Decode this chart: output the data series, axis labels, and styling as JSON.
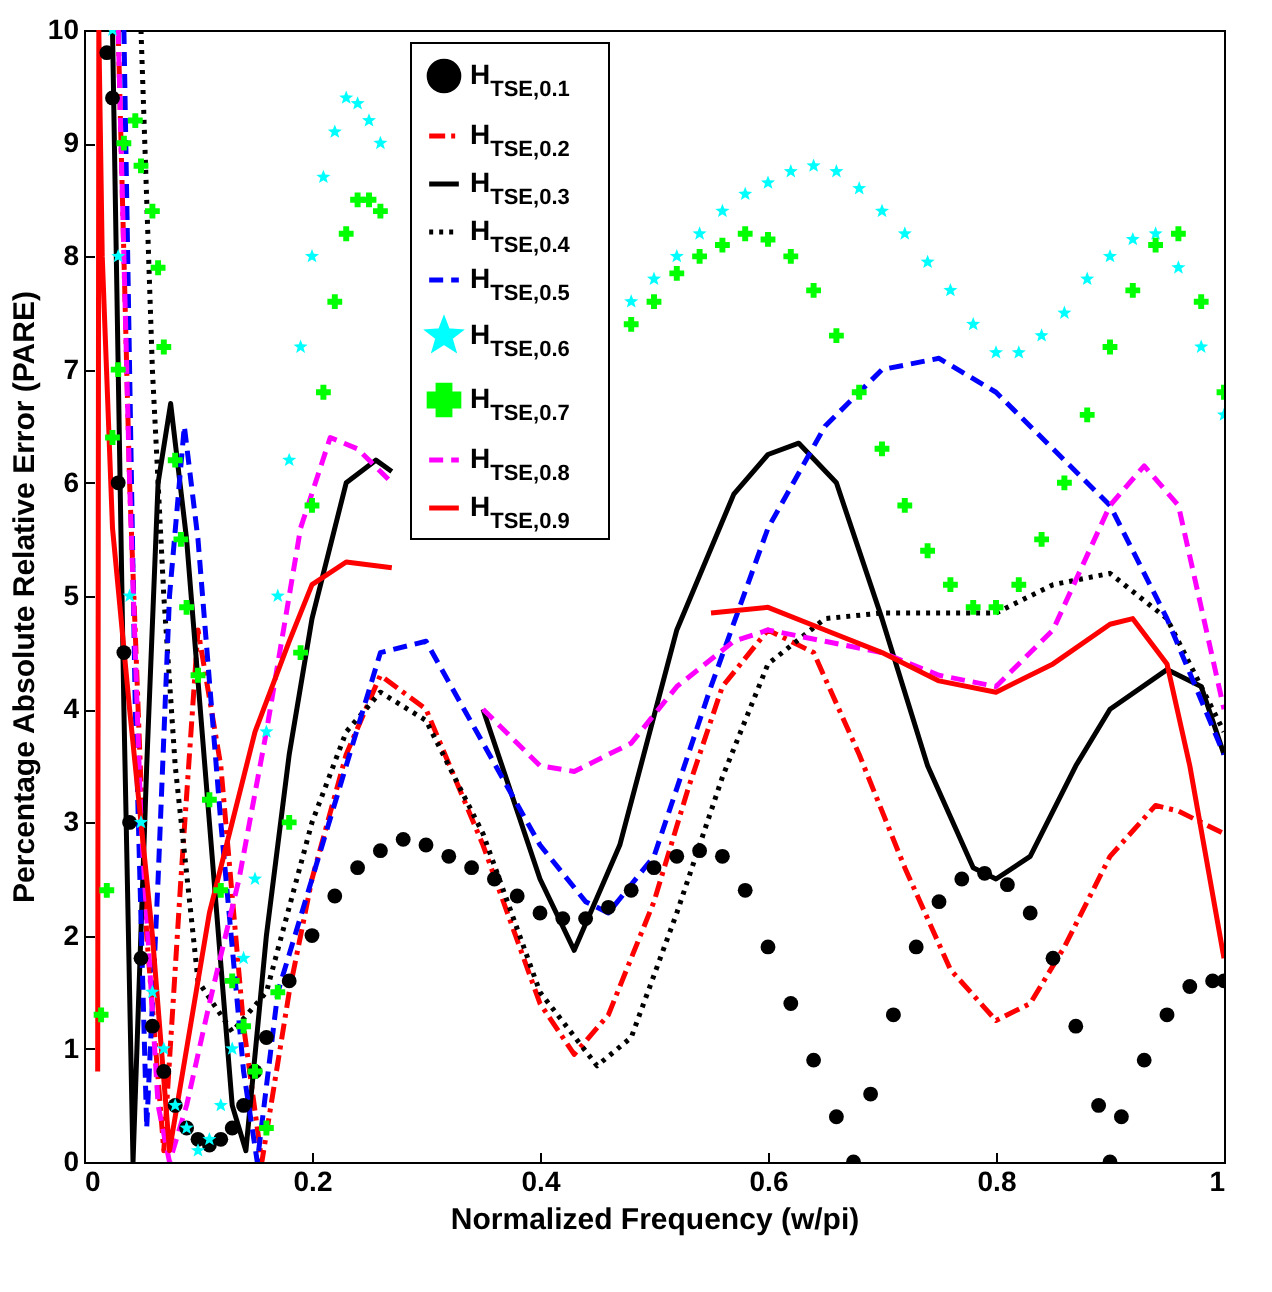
{
  "chart_data": {
    "type": "line",
    "xlabel": "Normalized Frequency (w/pi)",
    "ylabel": "Percentage Absolute Relative Error (PARE)",
    "xlim": [
      0,
      1
    ],
    "ylim": [
      0,
      10
    ],
    "xticks": [
      0,
      0.2,
      0.4,
      0.6,
      0.8,
      1
    ],
    "yticks": [
      0,
      1,
      2,
      3,
      4,
      5,
      6,
      7,
      8,
      9,
      10
    ],
    "legend": "top",
    "series": [
      {
        "name": "H$_{TSE,0.1}$",
        "type": "scatter",
        "marker": "circle",
        "color": "#000000",
        "x": [
          0.02,
          0.025,
          0.03,
          0.035,
          0.04,
          0.05,
          0.06,
          0.07,
          0.08,
          0.09,
          0.1,
          0.11,
          0.12,
          0.13,
          0.14,
          0.15,
          0.16,
          0.18,
          0.2,
          0.22,
          0.24,
          0.26,
          0.28,
          0.3,
          0.32,
          0.34,
          0.36,
          0.38,
          0.4,
          0.42,
          0.44,
          0.46,
          0.48,
          0.5,
          0.52,
          0.54,
          0.56,
          0.58,
          0.6,
          0.62,
          0.64,
          0.66,
          0.675,
          0.69,
          0.71,
          0.73,
          0.75,
          0.77,
          0.79,
          0.81,
          0.83,
          0.85,
          0.87,
          0.89,
          0.9,
          0.91,
          0.93,
          0.95,
          0.97,
          0.99,
          1.0
        ],
        "values": [
          9.8,
          9.4,
          6.0,
          4.5,
          3.0,
          1.8,
          1.2,
          0.8,
          0.5,
          0.3,
          0.2,
          0.15,
          0.2,
          0.3,
          0.5,
          0.8,
          1.1,
          1.6,
          2.0,
          2.35,
          2.6,
          2.75,
          2.85,
          2.8,
          2.7,
          2.6,
          2.5,
          2.35,
          2.2,
          2.15,
          2.15,
          2.25,
          2.4,
          2.6,
          2.7,
          2.75,
          2.7,
          2.4,
          1.9,
          1.4,
          0.9,
          0.4,
          0.0,
          0.6,
          1.3,
          1.9,
          2.3,
          2.5,
          2.55,
          2.45,
          2.2,
          1.8,
          1.2,
          0.5,
          0.0,
          0.4,
          0.9,
          1.3,
          1.55,
          1.6,
          1.6
        ]
      },
      {
        "name": "H$_{TSE,0.2}$",
        "type": "line",
        "line_style": "dashdot",
        "color": "#ff0000",
        "x": [
          0.03,
          0.04,
          0.055,
          0.07,
          0.085,
          0.1,
          0.12,
          0.14,
          0.156,
          0.18,
          0.2,
          0.23,
          0.26,
          0.3,
          0.35,
          0.4,
          0.43,
          0.46,
          0.5,
          0.53,
          0.56,
          0.6,
          0.64,
          0.68,
          0.72,
          0.76,
          0.8,
          0.83,
          0.86,
          0.9,
          0.94,
          0.96,
          1.0
        ],
        "values": [
          10,
          6.0,
          2.0,
          0.1,
          2.5,
          4.7,
          3.5,
          1.2,
          0.0,
          1.5,
          2.5,
          3.6,
          4.3,
          4.0,
          2.8,
          1.4,
          0.95,
          1.3,
          2.3,
          3.3,
          4.2,
          4.7,
          4.5,
          3.6,
          2.6,
          1.7,
          1.25,
          1.4,
          1.9,
          2.7,
          3.15,
          3.1,
          2.9
        ]
      },
      {
        "name": "H$_{TSE,0.3}$",
        "type": "line",
        "line_style": "solid",
        "color": "#000000",
        "x": [
          0.025,
          0.035,
          0.043,
          0.055,
          0.065,
          0.076,
          0.09,
          0.11,
          0.13,
          0.142,
          0.16,
          0.18,
          0.2,
          0.23,
          0.256,
          0.27,
          0.3,
          0.35,
          0.4,
          0.43,
          0.47,
          0.52,
          0.57,
          0.6,
          0.627,
          0.66,
          0.7,
          0.74,
          0.78,
          0.8,
          0.83,
          0.87,
          0.9,
          0.95,
          0.98,
          1.0
        ],
        "values": [
          10,
          4.0,
          0.0,
          3.5,
          6.0,
          6.7,
          5.5,
          3.0,
          0.5,
          0.1,
          2.0,
          3.6,
          4.8,
          6.0,
          6.2,
          6.1,
          null,
          4.0,
          2.5,
          1.87,
          2.8,
          4.7,
          5.9,
          6.25,
          6.35,
          6.0,
          4.8,
          3.5,
          2.6,
          2.5,
          2.7,
          3.5,
          4.0,
          4.35,
          4.2,
          3.6
        ]
      },
      {
        "name": "H$_{TSE,0.4}$",
        "type": "line",
        "line_style": "dotted",
        "color": "#000000",
        "x": [
          0.05,
          0.06,
          0.07,
          0.08,
          0.1,
          0.13,
          0.16,
          0.2,
          0.23,
          0.26,
          0.3,
          0.35,
          0.4,
          0.45,
          0.48,
          0.52,
          0.56,
          0.6,
          0.65,
          0.7,
          0.8,
          0.85,
          0.9,
          0.95,
          1.0
        ],
        "values": [
          10,
          7.0,
          5.0,
          3.5,
          1.6,
          1.15,
          1.5,
          3.0,
          3.8,
          4.15,
          3.9,
          2.9,
          1.5,
          0.85,
          1.1,
          2.2,
          3.4,
          4.4,
          4.8,
          4.85,
          4.85,
          5.1,
          5.2,
          4.8,
          3.8
        ]
      },
      {
        "name": "H$_{TSE,0.5}$",
        "type": "line",
        "line_style": "dashed",
        "color": "#0000ff",
        "x": [
          0.035,
          0.045,
          0.055,
          0.065,
          0.075,
          0.088,
          0.1,
          0.12,
          0.14,
          0.152,
          0.17,
          0.2,
          0.23,
          0.26,
          0.3,
          0.35,
          0.4,
          0.44,
          0.46,
          0.5,
          0.55,
          0.6,
          0.65,
          0.7,
          0.75,
          0.8,
          0.85,
          0.9,
          0.95,
          1.0
        ],
        "values": [
          10,
          4.0,
          0.3,
          2.5,
          5.0,
          6.5,
          5.5,
          3.0,
          0.8,
          0.0,
          1.5,
          2.5,
          3.5,
          4.5,
          4.6,
          3.7,
          2.8,
          2.3,
          2.2,
          2.7,
          4.2,
          5.6,
          6.5,
          7.0,
          7.1,
          6.8,
          6.3,
          5.8,
          4.8,
          3.6
        ]
      },
      {
        "name": "H$_{TSE,0.6}$",
        "type": "scatter",
        "marker": "star",
        "color": "#00ffff",
        "x": [
          0.025,
          0.03,
          0.04,
          0.05,
          0.06,
          0.07,
          0.08,
          0.09,
          0.1,
          0.11,
          0.12,
          0.13,
          0.14,
          0.15,
          0.16,
          0.17,
          0.18,
          0.19,
          0.2,
          0.21,
          0.22,
          0.23,
          0.24,
          0.25,
          0.26,
          0.48,
          0.5,
          0.52,
          0.54,
          0.56,
          0.58,
          0.6,
          0.62,
          0.64,
          0.66,
          0.68,
          0.7,
          0.72,
          0.74,
          0.76,
          0.78,
          0.8,
          0.82,
          0.84,
          0.86,
          0.88,
          0.9,
          0.92,
          0.94,
          0.96,
          0.98,
          1.0
        ],
        "values": [
          10,
          8.0,
          5.0,
          3.0,
          1.5,
          1.0,
          0.5,
          0.3,
          0.1,
          0.2,
          0.5,
          1.0,
          1.8,
          2.5,
          3.8,
          5.0,
          6.2,
          7.2,
          8.0,
          8.7,
          9.1,
          9.4,
          9.35,
          9.2,
          9.0,
          7.6,
          7.8,
          8.0,
          8.2,
          8.4,
          8.55,
          8.65,
          8.75,
          8.8,
          8.75,
          8.6,
          8.4,
          8.2,
          7.95,
          7.7,
          7.4,
          7.15,
          7.15,
          7.3,
          7.5,
          7.8,
          8.0,
          8.15,
          8.2,
          7.9,
          7.2,
          6.6
        ]
      },
      {
        "name": "H$_{TSE,0.7}$",
        "type": "scatter",
        "marker": "cross",
        "color": "#00ff00",
        "x": [
          0.015,
          0.02,
          0.025,
          0.03,
          0.035,
          0.045,
          0.05,
          0.06,
          0.065,
          0.07,
          0.08,
          0.085,
          0.09,
          0.1,
          0.11,
          0.12,
          0.13,
          0.14,
          0.15,
          0.16,
          0.17,
          0.18,
          0.19,
          0.2,
          0.21,
          0.22,
          0.23,
          0.24,
          0.25,
          0.26,
          0.48,
          0.5,
          0.52,
          0.54,
          0.56,
          0.58,
          0.6,
          0.62,
          0.64,
          0.66,
          0.68,
          0.7,
          0.72,
          0.74,
          0.76,
          0.78,
          0.8,
          0.82,
          0.84,
          0.86,
          0.88,
          0.9,
          0.92,
          0.94,
          0.96,
          0.98,
          1.0
        ],
        "values": [
          1.3,
          2.4,
          6.4,
          7.0,
          9.0,
          9.2,
          8.8,
          8.4,
          7.9,
          7.2,
          6.2,
          5.5,
          4.9,
          4.3,
          3.2,
          2.4,
          1.6,
          1.2,
          0.8,
          0.3,
          1.5,
          3.0,
          4.5,
          5.8,
          6.8,
          7.6,
          8.2,
          8.5,
          8.5,
          8.4,
          7.4,
          7.6,
          7.85,
          8.0,
          8.1,
          8.2,
          8.15,
          8.0,
          7.7,
          7.3,
          6.8,
          6.3,
          5.8,
          5.4,
          5.1,
          4.9,
          4.9,
          5.1,
          5.5,
          6.0,
          6.6,
          7.2,
          7.7,
          8.1,
          8.2,
          7.6,
          6.8
        ]
      },
      {
        "name": "H$_{TSE,0.8}$",
        "type": "line",
        "line_style": "dashed",
        "color": "#ff00ff",
        "x": [
          0.03,
          0.04,
          0.05,
          0.065,
          0.075,
          0.09,
          0.11,
          0.136,
          0.16,
          0.19,
          0.216,
          0.24,
          0.27,
          0.29,
          0.35,
          0.4,
          0.43,
          0.48,
          0.52,
          0.57,
          0.6,
          0.65,
          0.7,
          0.75,
          0.8,
          0.85,
          0.9,
          0.93,
          0.96,
          1.0
        ],
        "values": [
          10,
          6.0,
          3.0,
          0.5,
          0.0,
          0.5,
          1.4,
          2.5,
          3.8,
          5.6,
          6.4,
          6.3,
          6.0,
          null,
          4.0,
          3.5,
          3.45,
          3.7,
          4.2,
          4.6,
          4.7,
          4.6,
          4.5,
          4.3,
          4.2,
          4.7,
          5.8,
          6.15,
          5.8,
          4.0
        ]
      },
      {
        "name": "H$_{TSE,0.9}$",
        "type": "line",
        "line_style": "solid",
        "color": "#ff0000",
        "x": [
          0.012,
          0.013,
          0.016,
          0.025,
          0.04,
          0.06,
          0.075,
          0.09,
          0.11,
          0.13,
          0.15,
          0.18,
          0.2,
          0.23,
          0.27,
          0.35,
          0.55,
          0.6,
          0.65,
          0.7,
          0.75,
          0.8,
          0.85,
          0.9,
          0.92,
          0.95,
          0.97,
          1.0
        ],
        "values": [
          0.8,
          10,
          8.0,
          5.6,
          4.0,
          2.0,
          0.1,
          1.0,
          2.2,
          3.0,
          3.8,
          4.6,
          5.1,
          5.3,
          5.25,
          null,
          4.85,
          4.9,
          4.7,
          4.5,
          4.25,
          4.15,
          4.4,
          4.75,
          4.8,
          4.4,
          3.5,
          1.8
        ]
      }
    ]
  }
}
